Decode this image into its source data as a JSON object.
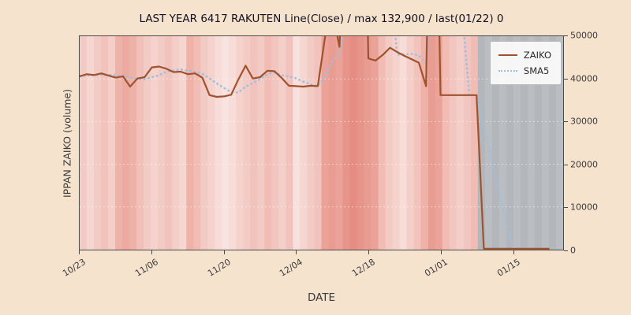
{
  "figure": {
    "title": "LAST YEAR 6417 RAKUTEN Line(Close) / max 132,900 / last(01/22) 0",
    "xlabel": "DATE",
    "ylabel": "IPPAN ZAIKO (volume)",
    "bg_color": "#f6e3cd"
  },
  "legend": {
    "items": [
      {
        "label": "ZAIKO",
        "style": "solid",
        "color": "#a0522d"
      },
      {
        "label": "SMA5",
        "style": "dotted",
        "color": "#9fbfdf"
      }
    ]
  },
  "chart_data": {
    "type": "line",
    "title": "LAST YEAR 6417 RAKUTEN Line(Close) / max 132,900 / last(01/22) 0",
    "xlabel": "DATE",
    "ylabel": "IPPAN ZAIKO (volume)",
    "ylim": [
      0,
      50000
    ],
    "yticks": [
      0,
      10000,
      20000,
      30000,
      40000,
      50000
    ],
    "xticks": {
      "labels": [
        "10/23",
        "11/06",
        "11/20",
        "12/04",
        "12/18",
        "01/01",
        "01/15"
      ],
      "slots": [
        0,
        10,
        20,
        30,
        40,
        50,
        60
      ]
    },
    "n_slots": 68,
    "max_close": 132900,
    "last_point": {
      "date": "01/22",
      "value": 0
    },
    "legend_position": "upper right",
    "grid_color": "#ffffff",
    "no_data_region_color": "#b3b6ba",
    "series": [
      {
        "name": "ZAIKO",
        "style": "solid",
        "color": "#a0522d",
        "values": [
          40600,
          41100,
          40900,
          41300,
          40800,
          40300,
          40600,
          38200,
          40100,
          40400,
          42700,
          42900,
          42400,
          41600,
          41700,
          41100,
          41300,
          40300,
          36200,
          35800,
          35900,
          36300,
          39900,
          43100,
          40100,
          40400,
          41900,
          41800,
          40200,
          38400,
          38300,
          38200,
          38400,
          38300,
          49800,
          56000,
          47500,
          90000,
          132900,
          132900,
          44800,
          44300,
          45600,
          47300,
          46300,
          45400,
          44600,
          43800,
          38300,
          132900,
          36200,
          36200,
          36200,
          36200,
          36200,
          36200,
          0,
          0,
          0,
          0,
          0,
          0,
          0,
          0,
          0,
          0
        ]
      },
      {
        "name": "SMA5",
        "style": "dotted",
        "color": "#9fbfdf",
        "values": [
          40600,
          40850,
          40870,
          40980,
          40940,
          40880,
          40780,
          40240,
          40000,
          39920,
          40400,
          40860,
          41700,
          42000,
          42260,
          41940,
          41620,
          41200,
          40120,
          38940,
          37900,
          36900,
          36820,
          38200,
          39060,
          39960,
          41080,
          41460,
          40880,
          40540,
          40120,
          39380,
          38700,
          38320,
          40600,
          44140,
          46000,
          56320,
          75240,
          91860,
          89620,
          88980,
          80100,
          62980,
          45660,
          45780,
          45840,
          45480,
          43680,
          61000,
          59160,
          57480,
          55960,
          55540,
          36200,
          36200,
          28960,
          21720,
          14480,
          7240,
          0,
          0,
          0,
          0,
          0,
          0
        ]
      }
    ],
    "background_bands": [
      "#f3cbc5",
      "#f6d6d1",
      "#f3cbc5",
      "#f1c3bc",
      "#f4cfc9",
      "#eeb2a9",
      "#ecaaa0",
      "#eeb2a9",
      "#f1c0b8",
      "#f3cbc5",
      "#f5d2cc",
      "#f3cbc5",
      "#f1c3bc",
      "#f4cfc9",
      "#f6d6d1",
      "#eeb2a9",
      "#f0bcb4",
      "#f3cbc5",
      "#f5d2cc",
      "#f7dcd8",
      "#f9e3e0",
      "#f7dcd8",
      "#f5d2cc",
      "#f3cbc5",
      "#f1c3bc",
      "#f3cbc5",
      "#f0bcb4",
      "#f2c6c0",
      "#f4cfc9",
      "#f1c3bc",
      "#f8e0dc",
      "#f6d6d1",
      "#f3cbc5",
      "#f1c3bc",
      "#eba399",
      "#e99c91",
      "#eba399",
      "#e7948a",
      "#e58d82",
      "#e7948a",
      "#e99c91",
      "#eba399",
      "#f0bcb4",
      "#f3cbc5",
      "#f5d2cc",
      "#f7dcd8",
      "#f4cfc9",
      "#f1c3bc",
      "#eeb2a9",
      "#e99c91",
      "#eba399",
      "#f0bcb4",
      "#f2c6c0",
      "#f4cfc9",
      "#f2c6c0",
      "#f0bcb4",
      "#b3b6ba",
      "#babdc1",
      "#b3b6ba",
      "#babdc1",
      "#b3b6ba",
      "#babdc1",
      "#b3b6ba",
      "#babdc1",
      "#b3b6ba",
      "#babdc1",
      "#b3b6ba",
      "#babdc1"
    ]
  }
}
